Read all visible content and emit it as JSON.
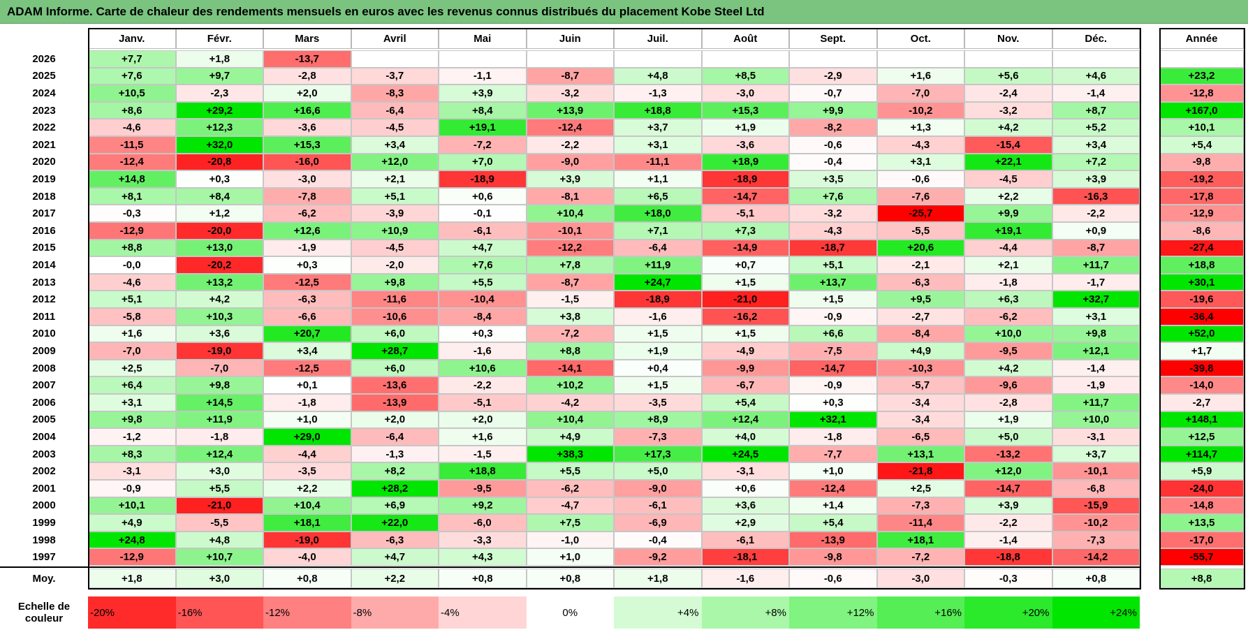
{
  "chart_data": {
    "type": "heatmap",
    "title": "ADAM Informe. Carte de chaleur des rendements mensuels en euros avec les revenus connus distribués du placement Kobe Steel Ltd",
    "months": [
      "Janv.",
      "Févr.",
      "Mars",
      "Avril",
      "Mai",
      "Juin",
      "Juil.",
      "Août",
      "Sept.",
      "Oct.",
      "Nov.",
      "Déc."
    ],
    "year_label": "Année",
    "rows": [
      {
        "year": "2026",
        "values": [
          "+7,7",
          "+1,8",
          "-13,7",
          "",
          "",
          "",
          "",
          "",
          "",
          "",
          "",
          ""
        ],
        "annual": ""
      },
      {
        "year": "2025",
        "values": [
          "+7,6",
          "+9,7",
          "-2,8",
          "-3,7",
          "-1,1",
          "-8,7",
          "+4,8",
          "+8,5",
          "-2,9",
          "+1,6",
          "+5,6",
          "+4,6"
        ],
        "annual": "+23,2"
      },
      {
        "year": "2024",
        "values": [
          "+10,5",
          "-2,3",
          "+2,0",
          "-8,3",
          "+3,9",
          "-3,2",
          "-1,3",
          "-3,0",
          "-0,7",
          "-7,0",
          "-2,4",
          "-1,4"
        ],
        "annual": "-12,8"
      },
      {
        "year": "2023",
        "values": [
          "+8,6",
          "+29,2",
          "+16,6",
          "-6,4",
          "+8,4",
          "+13,9",
          "+18,8",
          "+15,3",
          "+9,9",
          "-10,2",
          "-3,2",
          "+8,7"
        ],
        "annual": "+167,0"
      },
      {
        "year": "2022",
        "values": [
          "-4,6",
          "+12,3",
          "-3,6",
          "-4,5",
          "+19,1",
          "-12,4",
          "+3,7",
          "+1,9",
          "-8,2",
          "+1,3",
          "+4,2",
          "+5,2"
        ],
        "annual": "+10,1"
      },
      {
        "year": "2021",
        "values": [
          "-11,5",
          "+32,0",
          "+15,3",
          "+3,4",
          "-7,2",
          "-2,2",
          "+3,1",
          "-3,6",
          "-0,6",
          "-4,3",
          "-15,4",
          "+3,4"
        ],
        "annual": "+5,4"
      },
      {
        "year": "2020",
        "values": [
          "-12,4",
          "-20,8",
          "-16,0",
          "+12,0",
          "+7,0",
          "-9,0",
          "-11,1",
          "+18,9",
          "-0,4",
          "+3,1",
          "+22,1",
          "+7,2"
        ],
        "annual": "-9,8"
      },
      {
        "year": "2019",
        "values": [
          "+14,8",
          "+0,3",
          "-3,0",
          "+2,1",
          "-18,9",
          "+3,9",
          "+1,1",
          "-18,9",
          "+3,5",
          "-0,6",
          "-4,5",
          "+3,9"
        ],
        "annual": "-19,2"
      },
      {
        "year": "2018",
        "values": [
          "+8,1",
          "+8,4",
          "-7,8",
          "+5,1",
          "+0,6",
          "-8,1",
          "+6,5",
          "-14,7",
          "+7,6",
          "-7,6",
          "+2,2",
          "-16,3"
        ],
        "annual": "-17,8"
      },
      {
        "year": "2017",
        "values": [
          "-0,3",
          "+1,2",
          "-6,2",
          "-3,9",
          "-0,1",
          "+10,4",
          "+18,0",
          "-5,1",
          "-3,2",
          "-25,7",
          "+9,9",
          "-2,2"
        ],
        "annual": "-12,9"
      },
      {
        "year": "2016",
        "values": [
          "-12,9",
          "-20,0",
          "+12,6",
          "+10,9",
          "-6,1",
          "-10,1",
          "+7,1",
          "+7,3",
          "-4,3",
          "-5,5",
          "+19,1",
          "+0,9"
        ],
        "annual": "-8,6"
      },
      {
        "year": "2015",
        "values": [
          "+8,8",
          "+13,0",
          "-1,9",
          "-4,5",
          "+4,7",
          "-12,2",
          "-6,4",
          "-14,9",
          "-18,7",
          "+20,6",
          "-4,4",
          "-8,7"
        ],
        "annual": "-27,4"
      },
      {
        "year": "2014",
        "values": [
          "-0,0",
          "-20,2",
          "+0,3",
          "-2,0",
          "+7,6",
          "+7,8",
          "+11,9",
          "+0,7",
          "+5,1",
          "-2,1",
          "+2,1",
          "+11,7"
        ],
        "annual": "+18,8"
      },
      {
        "year": "2013",
        "values": [
          "-4,6",
          "+13,2",
          "-12,5",
          "+9,8",
          "+5,5",
          "-8,7",
          "+24,7",
          "+1,5",
          "+13,7",
          "-6,3",
          "-1,8",
          "-1,7"
        ],
        "annual": "+30,1"
      },
      {
        "year": "2012",
        "values": [
          "+5,1",
          "+4,2",
          "-6,3",
          "-11,6",
          "-10,4",
          "-1,5",
          "-18,9",
          "-21,0",
          "+1,5",
          "+9,5",
          "+6,3",
          "+32,7"
        ],
        "annual": "-19,6"
      },
      {
        "year": "2011",
        "values": [
          "-5,8",
          "+10,3",
          "-6,6",
          "-10,6",
          "-8,4",
          "+3,8",
          "-1,6",
          "-16,2",
          "-0,9",
          "-2,7",
          "-6,2",
          "+3,1"
        ],
        "annual": "-36,4"
      },
      {
        "year": "2010",
        "values": [
          "+1,6",
          "+3,6",
          "+20,7",
          "+6,0",
          "+0,3",
          "-7,2",
          "+1,5",
          "+1,5",
          "+6,6",
          "-8,4",
          "+10,0",
          "+9,8"
        ],
        "annual": "+52,0"
      },
      {
        "year": "2009",
        "values": [
          "-7,0",
          "-19,0",
          "+3,4",
          "+28,7",
          "-1,6",
          "+8,8",
          "+1,9",
          "-4,9",
          "-7,5",
          "+4,9",
          "-9,5",
          "+12,1"
        ],
        "annual": "+1,7"
      },
      {
        "year": "2008",
        "values": [
          "+2,5",
          "-7,0",
          "-12,5",
          "+6,0",
          "+10,6",
          "-14,1",
          "+0,4",
          "-9,9",
          "-14,7",
          "-10,3",
          "+4,2",
          "-1,4"
        ],
        "annual": "-39,8"
      },
      {
        "year": "2007",
        "values": [
          "+6,4",
          "+9,8",
          "+0,1",
          "-13,6",
          "-2,2",
          "+10,2",
          "+1,5",
          "-6,7",
          "-0,9",
          "-5,7",
          "-9,6",
          "-1,9"
        ],
        "annual": "-14,0"
      },
      {
        "year": "2006",
        "values": [
          "+3,1",
          "+14,5",
          "-1,8",
          "-13,9",
          "-5,1",
          "-4,2",
          "-3,5",
          "+5,4",
          "+0,3",
          "-3,4",
          "-2,8",
          "+11,7"
        ],
        "annual": "-2,7"
      },
      {
        "year": "2005",
        "values": [
          "+9,8",
          "+11,9",
          "+1,0",
          "+2,0",
          "+2,0",
          "+10,4",
          "+8,9",
          "+12,4",
          "+32,1",
          "-3,4",
          "+1,9",
          "+10,0"
        ],
        "annual": "+148,1"
      },
      {
        "year": "2004",
        "values": [
          "-1,2",
          "-1,8",
          "+29,0",
          "-6,4",
          "+1,6",
          "+4,9",
          "-7,3",
          "+4,0",
          "-1,8",
          "-6,5",
          "+5,0",
          "-3,1"
        ],
        "annual": "+12,5"
      },
      {
        "year": "2003",
        "values": [
          "+8,3",
          "+12,4",
          "-4,4",
          "-1,3",
          "-1,5",
          "+38,3",
          "+17,3",
          "+24,5",
          "-7,7",
          "+13,1",
          "-13,2",
          "+3,7"
        ],
        "annual": "+114,7"
      },
      {
        "year": "2002",
        "values": [
          "-3,1",
          "+3,0",
          "-3,5",
          "+8,2",
          "+18,8",
          "+5,5",
          "+5,0",
          "-3,1",
          "+1,0",
          "-21,8",
          "+12,0",
          "-10,1"
        ],
        "annual": "+5,9"
      },
      {
        "year": "2001",
        "values": [
          "-0,9",
          "+5,5",
          "+2,2",
          "+28,2",
          "-9,5",
          "-6,2",
          "-9,0",
          "+0,6",
          "-12,4",
          "+2,5",
          "-14,7",
          "-6,8"
        ],
        "annual": "-24,0"
      },
      {
        "year": "2000",
        "values": [
          "+10,1",
          "-21,0",
          "+10,4",
          "+6,9",
          "+9,2",
          "-4,7",
          "-6,1",
          "+3,6",
          "+1,4",
          "-7,3",
          "+3,9",
          "-15,9"
        ],
        "annual": "-14,8"
      },
      {
        "year": "1999",
        "values": [
          "+4,9",
          "-5,5",
          "+18,1",
          "+22,0",
          "-6,0",
          "+7,5",
          "-6,9",
          "+2,9",
          "+5,4",
          "-11,4",
          "-2,2",
          "-10,2"
        ],
        "annual": "+13,5"
      },
      {
        "year": "1998",
        "values": [
          "+24,8",
          "+4,8",
          "-19,0",
          "-6,3",
          "-3,3",
          "-1,0",
          "-0,4",
          "-6,1",
          "-13,9",
          "+18,1",
          "-1,4",
          "-7,3"
        ],
        "annual": "-17,0"
      },
      {
        "year": "1997",
        "values": [
          "-12,9",
          "+10,7",
          "-4,0",
          "+4,7",
          "+4,3",
          "+1,0",
          "-9,2",
          "-18,1",
          "-9,8",
          "-7,2",
          "-18,8",
          "-14,2"
        ],
        "annual": "-55,7"
      }
    ],
    "average": {
      "label": "Moy.",
      "values": [
        "+1,8",
        "+3,0",
        "+0,8",
        "+2,2",
        "+0,8",
        "+0,8",
        "+1,8",
        "-1,6",
        "-0,6",
        "-3,0",
        "-0,3",
        "+0,8"
      ],
      "annual": "+8,8"
    },
    "scale": {
      "label_line1": "Echelle de",
      "label_line2": "couleur",
      "steps": [
        "-20%",
        "-16%",
        "-12%",
        "-8%",
        "-4%",
        "0%",
        "+4%",
        "+8%",
        "+12%",
        "+16%",
        "+20%",
        "+24%"
      ]
    },
    "colors": {
      "title_bg": "#7ac47f",
      "neg_max": "#ff0000",
      "pos_max": "#00e600",
      "zero": "#ffffff"
    }
  }
}
